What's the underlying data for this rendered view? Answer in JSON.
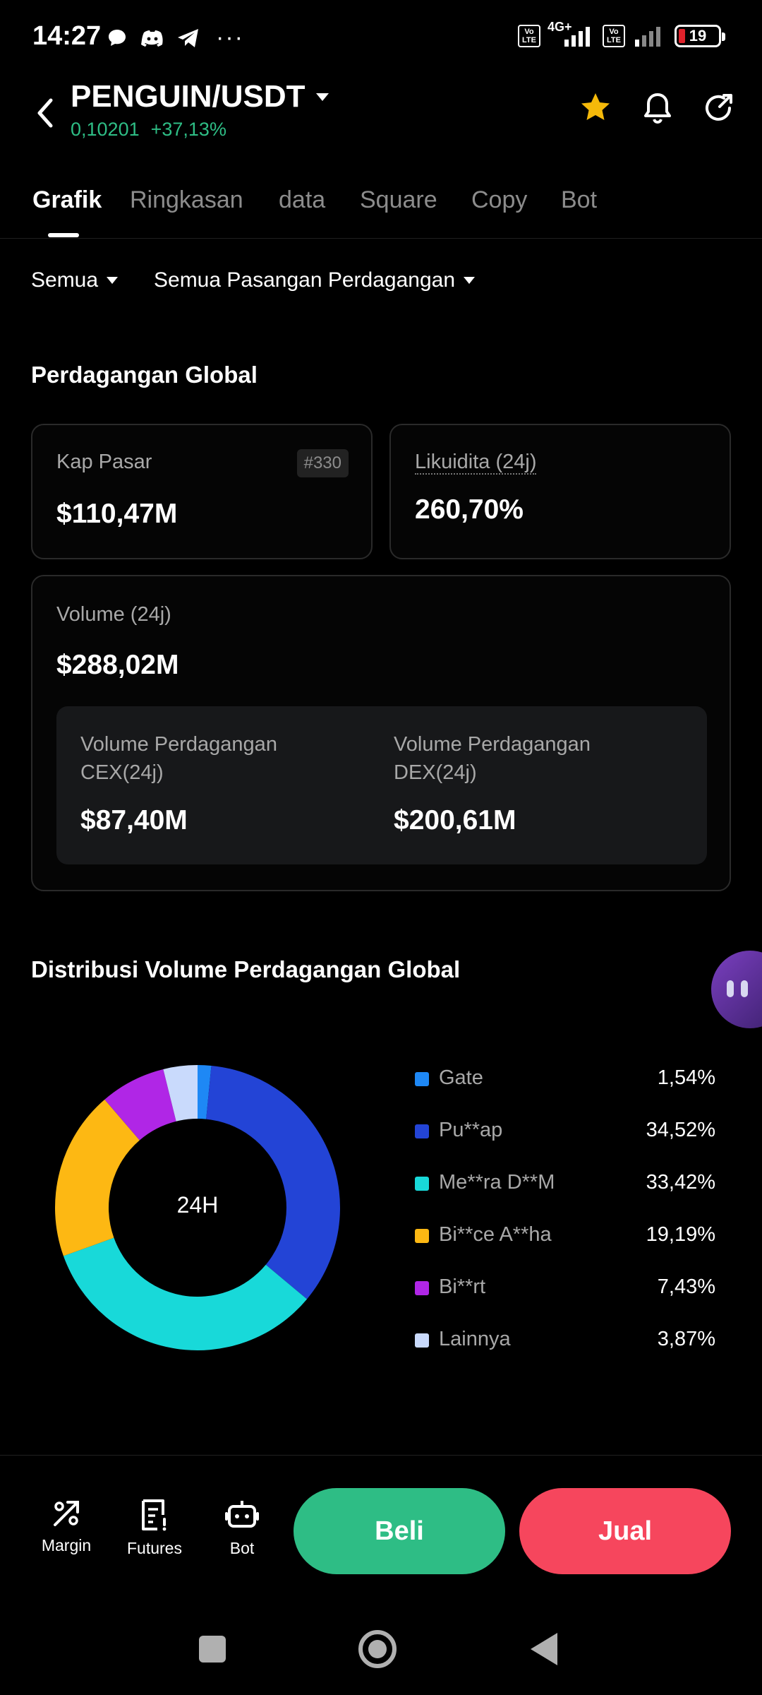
{
  "status_bar": {
    "time": "14:27",
    "network": "4G+",
    "volte1": "Vo LTE",
    "volte2": "Vo LTE",
    "battery": "19",
    "more": "···"
  },
  "header": {
    "pair": "PENGUIN/USDT",
    "price": "0,10201",
    "change": "+37,13%"
  },
  "tabs": [
    "Grafik",
    "Ringkasan",
    "data",
    "Square",
    "Copy",
    "Bot"
  ],
  "filters": {
    "scope": "Semua",
    "pairs": "Semua Pasangan Perdagangan"
  },
  "global": {
    "title": "Perdagangan Global",
    "market_cap_label": "Kap Pasar",
    "market_cap_rank": "#330",
    "market_cap_value": "$110,47M",
    "liquidity_label": "Likuidita (24j)",
    "liquidity_value": "260,70%",
    "volume_label": "Volume (24j)",
    "volume_value": "$288,02M",
    "cex_label": "Volume Perdagangan CEX(24j)",
    "cex_value": "$87,40M",
    "dex_label": "Volume Perdagangan DEX(24j)",
    "dex_value": "$200,61M"
  },
  "distribution": {
    "title": "Distribusi Volume Perdagangan Global",
    "center_label": "24H"
  },
  "chart_data": {
    "type": "pie",
    "title": "Distribusi Volume Perdagangan Global",
    "categories": [
      "Gate",
      "Pu**ap",
      "Me**ra D**M",
      "Bi**ce A**ha",
      "Bi**rt",
      "Lainnya"
    ],
    "values": [
      1.54,
      34.52,
      33.42,
      19.19,
      7.43,
      3.87
    ],
    "labels": [
      "1,54%",
      "34,52%",
      "33,42%",
      "19,19%",
      "7,43%",
      "3,87%"
    ],
    "colors": [
      "#1e88f5",
      "#2344d6",
      "#18d9d9",
      "#fdb813",
      "#b026e6",
      "#c9dafc"
    ],
    "legend": "right"
  },
  "bottom_bar": {
    "margin": "Margin",
    "futures": "Futures",
    "bot": "Bot",
    "buy": "Beli",
    "sell": "Jual"
  }
}
